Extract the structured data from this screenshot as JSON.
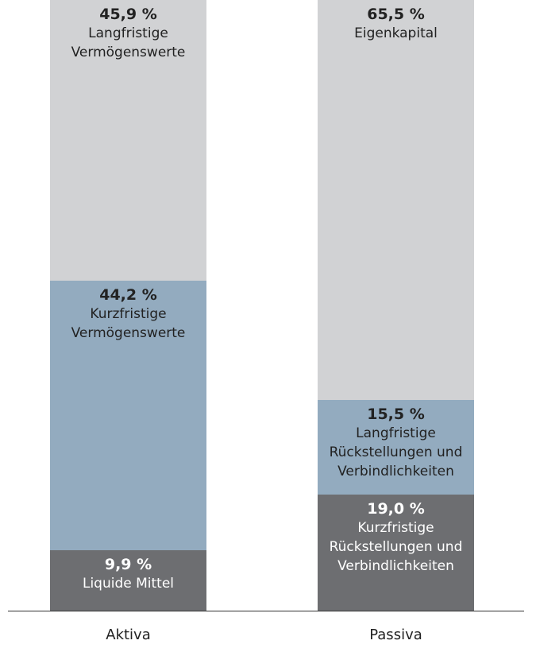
{
  "chart_data": {
    "type": "stacked-bar",
    "categories": [
      "Aktiva",
      "Passiva"
    ],
    "ylim": [
      0,
      100
    ],
    "series": [
      {
        "color": "#6d6e71",
        "text_color": "#ffffff",
        "values": [
          9.9,
          19.0
        ],
        "value_labels": [
          "9,9 %",
          "19,0 %"
        ],
        "labels": [
          "Liquide Mittel",
          "Kurzfristige Rückstellungen und Verbindlichkeiten"
        ]
      },
      {
        "color": "#93abbf",
        "text_color": "#222222",
        "values": [
          44.2,
          15.5
        ],
        "value_labels": [
          "44,2 %",
          "15,5 %"
        ],
        "labels": [
          "Kurzfristige Vermögenswerte",
          "Langfristige Rückstellungen und Verbindlichkeiten"
        ]
      },
      {
        "color": "#d1d2d4",
        "text_color": "#222222",
        "values": [
          45.9,
          65.5
        ],
        "value_labels": [
          "45,9 %",
          "65,5 %"
        ],
        "labels": [
          "Langfristige Vermögenswerte",
          "Eigenkapital"
        ]
      }
    ]
  }
}
